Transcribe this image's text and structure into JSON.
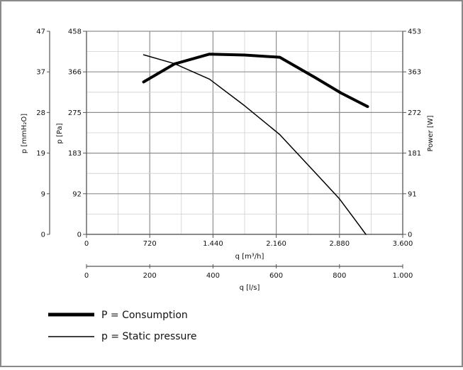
{
  "chart_data": {
    "type": "line",
    "x_primary": {
      "label": "q [m³/h]",
      "ticks": [
        "0",
        "720",
        "1.440",
        "2.160",
        "2.880",
        "3.600"
      ],
      "range": [
        0,
        3600
      ]
    },
    "x_secondary": {
      "label": "q [l/s]",
      "ticks": [
        "0",
        "200",
        "400",
        "600",
        "800",
        "1.000"
      ],
      "range": [
        0,
        1000
      ]
    },
    "y_left_outer": {
      "label": "p [mmH₂O]",
      "ticks": [
        "0",
        "9",
        "19",
        "28",
        "37",
        "47"
      ]
    },
    "y_left": {
      "label": "p [Pa]",
      "ticks": [
        "0",
        "92",
        "183",
        "275",
        "366",
        "458"
      ],
      "range": [
        0,
        458
      ]
    },
    "y_right": {
      "label": "Power [W]",
      "ticks": [
        "0",
        "91",
        "181",
        "272",
        "363",
        "453"
      ],
      "range": [
        0,
        453
      ]
    },
    "grid": true,
    "series": [
      {
        "name": "P = Consumption",
        "axis": "right",
        "line_width": 4,
        "x": [
          650,
          1000,
          1400,
          1800,
          2200,
          2600,
          2900,
          3100,
          3200
        ],
        "y": [
          340,
          380,
          402,
          400,
          395,
          350,
          315,
          295,
          285
        ]
      },
      {
        "name": "p = Static pressure",
        "axis": "left",
        "line_width": 1.5,
        "x": [
          650,
          1000,
          1400,
          1800,
          2200,
          2600,
          2880,
          3050,
          3180
        ],
        "y": [
          405,
          385,
          350,
          290,
          225,
          140,
          80,
          35,
          0
        ]
      }
    ],
    "legend": {
      "position": "bottom-left",
      "entries": [
        {
          "label": "P = Consumption"
        },
        {
          "label": "p = Static pressure"
        }
      ]
    }
  }
}
